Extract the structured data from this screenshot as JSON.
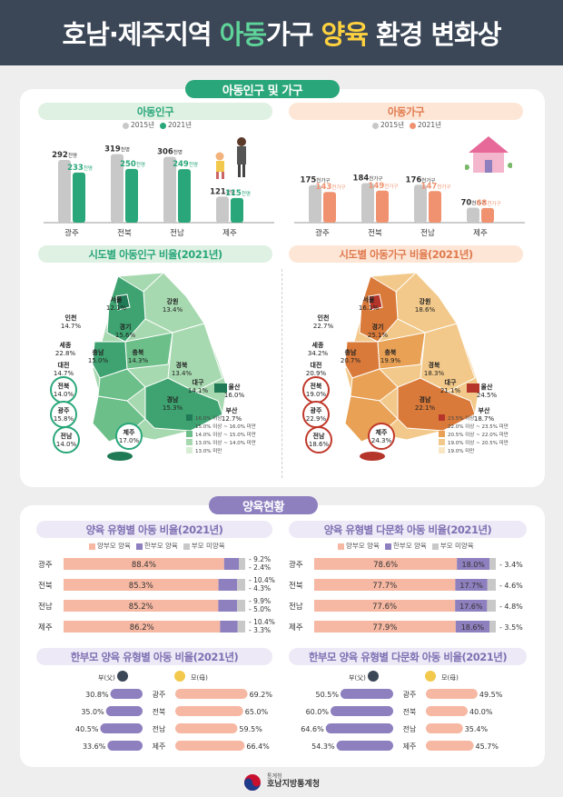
{
  "title": {
    "part1": "호남·제주지역 ",
    "part2": "아동",
    "part3": "가구 ",
    "part4": "양육",
    "part5": " 환경 변화상"
  },
  "section1": {
    "title": "아동인구 및 가구"
  },
  "section2": {
    "title": "양육현황"
  },
  "colors": {
    "green": "#2aa77a",
    "orange": "#f09270",
    "gray": "#c8c8c8",
    "purple": "#8e7fbf",
    "navy": "#3b4757"
  },
  "child_pop": {
    "title": "아동인구",
    "legend": [
      "2015년",
      "2021년"
    ],
    "regions": [
      "광주",
      "전북",
      "전남",
      "제주"
    ],
    "v2015": [
      292,
      319,
      306,
      121
    ],
    "v2021": [
      233,
      250,
      249,
      115
    ],
    "unit": "천명"
  },
  "child_hh": {
    "title": "아동가구",
    "legend": [
      "2015년",
      "2021년"
    ],
    "regions": [
      "광주",
      "전북",
      "전남",
      "제주"
    ],
    "v2015": [
      175,
      184,
      176,
      70
    ],
    "v2021": [
      143,
      149,
      147,
      68
    ],
    "unit": "천가구"
  },
  "map_pop": {
    "title": "시도별 아동인구 비율(2021년)",
    "labels": [
      {
        "name": "서울",
        "value": "12.1%"
      },
      {
        "name": "인천",
        "value": "14.7%"
      },
      {
        "name": "경기",
        "value": "15.6%"
      },
      {
        "name": "강원",
        "value": "13.4%"
      },
      {
        "name": "세종",
        "value": "22.8%"
      },
      {
        "name": "충남",
        "value": "15.0%"
      },
      {
        "name": "충북",
        "value": "14.3%"
      },
      {
        "name": "대전",
        "value": "14.7%"
      },
      {
        "name": "경북",
        "value": "13.4%"
      },
      {
        "name": "대구",
        "value": "14.1%"
      },
      {
        "name": "울산",
        "value": "16.0%"
      },
      {
        "name": "경남",
        "value": "15.3%"
      },
      {
        "name": "부산",
        "value": "12.7%"
      },
      {
        "name": "전북",
        "value": "14.0%"
      },
      {
        "name": "광주",
        "value": "15.8%"
      },
      {
        "name": "전남",
        "value": "14.0%"
      },
      {
        "name": "제주",
        "value": "17.0%"
      }
    ],
    "legend": [
      "16.0% 이상",
      "15.0% 이상 ~ 16.0% 미만",
      "14.0% 이상 ~ 15.0% 미만",
      "13.0% 이상 ~ 14.0% 미만",
      "13.0% 미만"
    ],
    "legend_colors": [
      "#1f7a55",
      "#3ea370",
      "#6cbf89",
      "#a7d9b0",
      "#d7eed4"
    ]
  },
  "map_hh": {
    "title": "시도별 아동가구 비율(2021년)",
    "labels": [
      {
        "name": "서울",
        "value": "16.1%"
      },
      {
        "name": "인천",
        "value": "22.7%"
      },
      {
        "name": "경기",
        "value": "25.1%"
      },
      {
        "name": "강원",
        "value": "18.6%"
      },
      {
        "name": "세종",
        "value": "34.2%"
      },
      {
        "name": "충남",
        "value": "20.7%"
      },
      {
        "name": "충북",
        "value": "19.9%"
      },
      {
        "name": "대전",
        "value": "20.9%"
      },
      {
        "name": "경북",
        "value": "18.3%"
      },
      {
        "name": "대구",
        "value": "21.1%"
      },
      {
        "name": "울산",
        "value": "24.5%"
      },
      {
        "name": "경남",
        "value": "22.1%"
      },
      {
        "name": "부산",
        "value": "18.7%"
      },
      {
        "name": "전북",
        "value": "19.0%"
      },
      {
        "name": "광주",
        "value": "22.9%"
      },
      {
        "name": "전남",
        "value": "18.6%"
      },
      {
        "name": "제주",
        "value": "24.3%"
      }
    ],
    "legend": [
      "23.5% 이상",
      "22.0% 이상 ~ 23.5% 미만",
      "20.5% 이상 ~ 22.0% 미만",
      "19.0% 이상 ~ 20.5% 미만",
      "19.0% 미만"
    ],
    "legend_colors": [
      "#b5352a",
      "#d97a3a",
      "#e8a155",
      "#f2c98a",
      "#f8e6c2"
    ]
  },
  "care_type": {
    "title": "양육 유형별 아동 비율(2021년)",
    "legend": [
      "양부모 양육",
      "한부모 양육",
      "부모 미양육"
    ],
    "rows": [
      {
        "region": "광주",
        "both": 88.4,
        "both_label": "88.4%",
        "single_label": "9.2%",
        "none_label": "2.4%"
      },
      {
        "region": "전북",
        "both": 85.3,
        "both_label": "85.3%",
        "single_label": "10.4%",
        "none_label": "4.3%"
      },
      {
        "region": "전남",
        "both": 85.2,
        "both_label": "85.2%",
        "single_label": "9.9%",
        "none_label": "5.0%"
      },
      {
        "region": "제주",
        "both": 86.2,
        "both_label": "86.2%",
        "single_label": "10.4%",
        "none_label": "3.3%"
      }
    ]
  },
  "care_type_multi": {
    "title": "양육 유형별 다문화 아동 비율(2021년)",
    "legend": [
      "양부모 양육",
      "한부모 양육",
      "부모 미양육"
    ],
    "rows": [
      {
        "region": "광주",
        "both": 78.6,
        "both_label": "78.6%",
        "single": 18.0,
        "single_label": "18.0%",
        "none_label": "3.4%"
      },
      {
        "region": "전북",
        "both": 77.7,
        "both_label": "77.7%",
        "single": 17.7,
        "single_label": "17.7%",
        "none_label": "4.6%"
      },
      {
        "region": "전남",
        "both": 77.6,
        "both_label": "77.6%",
        "single": 17.6,
        "single_label": "17.6%",
        "none_label": "4.8%"
      },
      {
        "region": "제주",
        "both": 77.9,
        "both_label": "77.9%",
        "single": 18.6,
        "single_label": "18.6%",
        "none_label": "3.5%"
      }
    ]
  },
  "single_parent": {
    "title": "한부모 양육 유형별 아동 비율(2021년)",
    "father": "부(父)",
    "mother": "모(母)",
    "rows": [
      {
        "region": "광주",
        "father": 30.8,
        "father_label": "30.8%",
        "mother": 69.2,
        "mother_label": "69.2%"
      },
      {
        "region": "전북",
        "father": 35.0,
        "father_label": "35.0%",
        "mother": 65.0,
        "mother_label": "65.0%"
      },
      {
        "region": "전남",
        "father": 40.5,
        "father_label": "40.5%",
        "mother": 59.5,
        "mother_label": "59.5%"
      },
      {
        "region": "제주",
        "father": 33.6,
        "father_label": "33.6%",
        "mother": 66.4,
        "mother_label": "66.4%"
      }
    ]
  },
  "single_parent_multi": {
    "title": "한부모 양육 유형별 다문화 아동 비율(2021년)",
    "father": "부(父)",
    "mother": "모(母)",
    "rows": [
      {
        "region": "광주",
        "father": 50.5,
        "father_label": "50.5%",
        "mother": 49.5,
        "mother_label": "49.5%"
      },
      {
        "region": "전북",
        "father": 60.0,
        "father_label": "60.0%",
        "mother": 40.0,
        "mother_label": "40.0%"
      },
      {
        "region": "전남",
        "father": 64.6,
        "father_label": "64.6%",
        "mother": 35.4,
        "mother_label": "35.4%"
      },
      {
        "region": "제주",
        "father": 54.3,
        "father_label": "54.3%",
        "mother": 45.7,
        "mother_label": "45.7%"
      }
    ]
  },
  "footer": {
    "org_small": "통계청",
    "org": "호남지방통계청"
  }
}
